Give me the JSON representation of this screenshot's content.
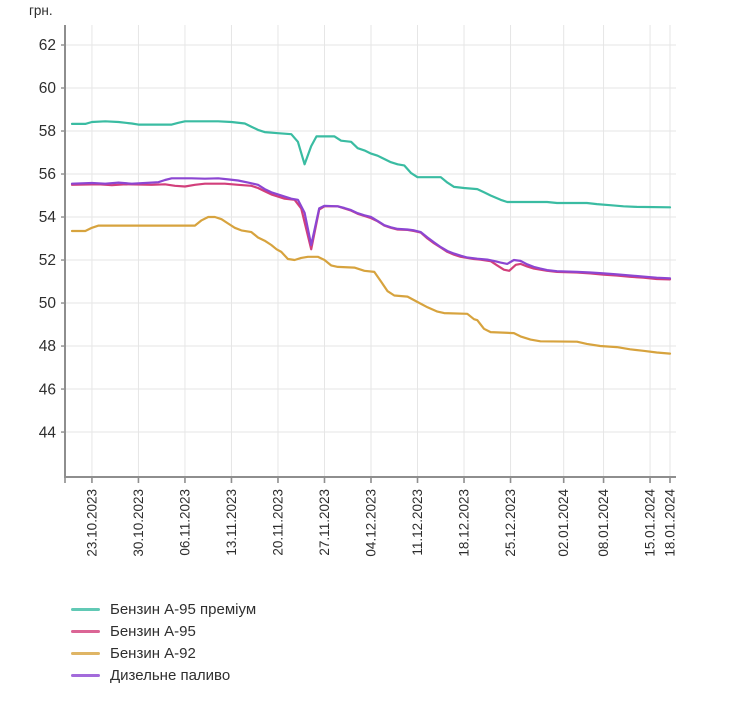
{
  "chart_data": {
    "type": "line",
    "ylabel": "грн.",
    "x_tick_labels": [
      "23.10.2023",
      "30.10.2023",
      "06.11.2023",
      "13.11.2023",
      "20.11.2023",
      "27.11.2023",
      "04.12.2023",
      "11.12.2023",
      "18.12.2023",
      "25.12.2023",
      "02.01.2024",
      "08.01.2024",
      "15.01.2024",
      "18.01.2024"
    ],
    "x_tick_days": [
      3,
      10,
      17,
      24,
      31,
      38,
      45,
      52,
      59,
      66,
      74,
      80,
      87,
      90
    ],
    "x_range_days": [
      0,
      90
    ],
    "x_start_date": "20.10.2023",
    "y_ticks": [
      62,
      60,
      58,
      56,
      54,
      52,
      50,
      48,
      46,
      44
    ],
    "ylim": [
      41.91,
      62.93
    ],
    "grid": true,
    "legend_position": "bottom-left",
    "colors": {
      "axis": "#8e8e8e",
      "grid": "#e6e6e6",
      "text": "#2e2e2e",
      "background": "#ffffff"
    },
    "series": [
      {
        "name": "Бензин А-95 преміум",
        "color": "#3abca2",
        "points": [
          [
            0,
            58.33
          ],
          [
            2,
            58.33
          ],
          [
            3,
            58.42
          ],
          [
            5,
            58.45
          ],
          [
            7,
            58.42
          ],
          [
            9,
            58.35
          ],
          [
            10,
            58.3
          ],
          [
            15,
            58.3
          ],
          [
            16,
            58.38
          ],
          [
            17,
            58.45
          ],
          [
            22,
            58.45
          ],
          [
            24,
            58.42
          ],
          [
            26,
            58.35
          ],
          [
            27,
            58.2
          ],
          [
            28,
            58.05
          ],
          [
            29,
            57.95
          ],
          [
            31,
            57.9
          ],
          [
            33,
            57.85
          ],
          [
            34,
            57.5
          ],
          [
            35,
            56.45
          ],
          [
            36,
            57.3
          ],
          [
            36.8,
            57.75
          ],
          [
            39.5,
            57.75
          ],
          [
            40.5,
            57.55
          ],
          [
            42,
            57.5
          ],
          [
            43,
            57.2
          ],
          [
            44,
            57.1
          ],
          [
            45,
            56.95
          ],
          [
            46,
            56.85
          ],
          [
            47,
            56.7
          ],
          [
            48,
            56.55
          ],
          [
            49,
            56.45
          ],
          [
            50,
            56.4
          ],
          [
            51,
            56.05
          ],
          [
            52,
            55.85
          ],
          [
            55.5,
            55.85
          ],
          [
            56.5,
            55.6
          ],
          [
            57.5,
            55.4
          ],
          [
            59,
            55.35
          ],
          [
            61,
            55.3
          ],
          [
            62,
            55.15
          ],
          [
            63,
            55.0
          ],
          [
            64.5,
            54.8
          ],
          [
            65.5,
            54.7
          ],
          [
            71.5,
            54.7
          ],
          [
            73,
            54.65
          ],
          [
            77.5,
            54.65
          ],
          [
            79,
            54.6
          ],
          [
            81,
            54.55
          ],
          [
            83,
            54.5
          ],
          [
            85,
            54.47
          ],
          [
            90,
            54.45
          ]
        ]
      },
      {
        "name": "Бензин А-95",
        "color": "#d23f7b",
        "points": [
          [
            0,
            55.5
          ],
          [
            4,
            55.52
          ],
          [
            6,
            55.48
          ],
          [
            8,
            55.52
          ],
          [
            12,
            55.5
          ],
          [
            14,
            55.52
          ],
          [
            15.5,
            55.45
          ],
          [
            17,
            55.42
          ],
          [
            18.5,
            55.5
          ],
          [
            20,
            55.55
          ],
          [
            23,
            55.55
          ],
          [
            25,
            55.5
          ],
          [
            27,
            55.45
          ],
          [
            28,
            55.35
          ],
          [
            29,
            55.2
          ],
          [
            30,
            55.05
          ],
          [
            31,
            54.95
          ],
          [
            32,
            54.85
          ],
          [
            33.5,
            54.8
          ],
          [
            34.5,
            54.4
          ],
          [
            36,
            52.5
          ],
          [
            37.2,
            54.35
          ],
          [
            38,
            54.5
          ],
          [
            40,
            54.5
          ],
          [
            41,
            54.4
          ],
          [
            42,
            54.3
          ],
          [
            43,
            54.15
          ],
          [
            44,
            54.05
          ],
          [
            45,
            53.95
          ],
          [
            46,
            53.8
          ],
          [
            47,
            53.6
          ],
          [
            48,
            53.5
          ],
          [
            49,
            53.42
          ],
          [
            50.5,
            53.4
          ],
          [
            51.5,
            53.35
          ],
          [
            52.5,
            53.28
          ],
          [
            53.5,
            53.0
          ],
          [
            54.5,
            52.78
          ],
          [
            55.5,
            52.58
          ],
          [
            56.5,
            52.38
          ],
          [
            57.5,
            52.25
          ],
          [
            58.5,
            52.15
          ],
          [
            59.5,
            52.1
          ],
          [
            60.5,
            52.05
          ],
          [
            61.5,
            52.02
          ],
          [
            63,
            51.95
          ],
          [
            64,
            51.75
          ],
          [
            65,
            51.55
          ],
          [
            65.8,
            51.5
          ],
          [
            66.8,
            51.78
          ],
          [
            67.5,
            51.82
          ],
          [
            68.5,
            51.7
          ],
          [
            69.5,
            51.6
          ],
          [
            70.5,
            51.55
          ],
          [
            71.5,
            51.5
          ],
          [
            73,
            51.45
          ],
          [
            76,
            51.42
          ],
          [
            78,
            51.38
          ],
          [
            80,
            51.32
          ],
          [
            82,
            51.28
          ],
          [
            84,
            51.22
          ],
          [
            86,
            51.18
          ],
          [
            88,
            51.12
          ],
          [
            90,
            51.1
          ]
        ]
      },
      {
        "name": "Бензин А-92",
        "color": "#d7a33e",
        "points": [
          [
            0,
            53.35
          ],
          [
            2,
            53.35
          ],
          [
            3,
            53.5
          ],
          [
            4,
            53.6
          ],
          [
            18.5,
            53.6
          ],
          [
            19.5,
            53.85
          ],
          [
            20.5,
            54.0
          ],
          [
            21.5,
            54.0
          ],
          [
            22.5,
            53.9
          ],
          [
            23.5,
            53.7
          ],
          [
            24.5,
            53.5
          ],
          [
            25.5,
            53.38
          ],
          [
            27,
            53.3
          ],
          [
            28,
            53.05
          ],
          [
            29,
            52.9
          ],
          [
            30,
            52.7
          ],
          [
            30.8,
            52.5
          ],
          [
            31.5,
            52.38
          ],
          [
            32.5,
            52.05
          ],
          [
            33.5,
            52.0
          ],
          [
            34.5,
            52.1
          ],
          [
            35.5,
            52.15
          ],
          [
            37,
            52.15
          ],
          [
            38,
            52.0
          ],
          [
            39,
            51.75
          ],
          [
            40,
            51.68
          ],
          [
            42.5,
            51.65
          ],
          [
            44,
            51.5
          ],
          [
            45.5,
            51.45
          ],
          [
            46.5,
            51.0
          ],
          [
            47.5,
            50.55
          ],
          [
            48.5,
            50.35
          ],
          [
            50.5,
            50.3
          ],
          [
            52,
            50.05
          ],
          [
            53.5,
            49.8
          ],
          [
            55,
            49.6
          ],
          [
            56,
            49.53
          ],
          [
            59.5,
            49.5
          ],
          [
            60.5,
            49.25
          ],
          [
            61,
            49.2
          ],
          [
            62,
            48.8
          ],
          [
            63,
            48.65
          ],
          [
            66.5,
            48.6
          ],
          [
            67.5,
            48.45
          ],
          [
            69,
            48.3
          ],
          [
            70.5,
            48.22
          ],
          [
            76,
            48.2
          ],
          [
            77.5,
            48.1
          ],
          [
            79.5,
            48.0
          ],
          [
            82,
            47.95
          ],
          [
            84,
            47.85
          ],
          [
            86,
            47.78
          ],
          [
            88,
            47.7
          ],
          [
            90,
            47.65
          ]
        ]
      },
      {
        "name": "Дизельне паливо",
        "color": "#8c46d2",
        "points": [
          [
            0,
            55.55
          ],
          [
            3,
            55.58
          ],
          [
            5,
            55.55
          ],
          [
            7,
            55.6
          ],
          [
            9,
            55.55
          ],
          [
            11,
            55.58
          ],
          [
            13,
            55.62
          ],
          [
            14,
            55.72
          ],
          [
            15,
            55.8
          ],
          [
            18,
            55.8
          ],
          [
            20,
            55.78
          ],
          [
            22,
            55.8
          ],
          [
            23.5,
            55.75
          ],
          [
            25,
            55.7
          ],
          [
            26.5,
            55.6
          ],
          [
            28,
            55.5
          ],
          [
            29,
            55.3
          ],
          [
            30,
            55.15
          ],
          [
            31,
            55.05
          ],
          [
            32,
            54.95
          ],
          [
            33,
            54.85
          ],
          [
            34,
            54.8
          ],
          [
            35,
            54.2
          ],
          [
            36,
            52.7
          ],
          [
            37.2,
            54.4
          ],
          [
            38,
            54.52
          ],
          [
            40,
            54.5
          ],
          [
            41,
            54.42
          ],
          [
            42,
            54.32
          ],
          [
            43,
            54.18
          ],
          [
            44,
            54.08
          ],
          [
            45,
            54.0
          ],
          [
            46,
            53.82
          ],
          [
            47,
            53.62
          ],
          [
            48,
            53.52
          ],
          [
            49,
            53.45
          ],
          [
            50.5,
            53.42
          ],
          [
            51.5,
            53.38
          ],
          [
            52.5,
            53.3
          ],
          [
            53.5,
            53.05
          ],
          [
            54.5,
            52.82
          ],
          [
            55.5,
            52.6
          ],
          [
            56.5,
            52.42
          ],
          [
            57.5,
            52.3
          ],
          [
            58.5,
            52.2
          ],
          [
            59.5,
            52.12
          ],
          [
            61,
            52.06
          ],
          [
            62.5,
            52.02
          ],
          [
            63.5,
            51.96
          ],
          [
            64.5,
            51.88
          ],
          [
            65.5,
            51.82
          ],
          [
            66.5,
            52.0
          ],
          [
            67.5,
            51.96
          ],
          [
            68.5,
            51.8
          ],
          [
            69.5,
            51.68
          ],
          [
            70.5,
            51.6
          ],
          [
            71.5,
            51.53
          ],
          [
            73,
            51.48
          ],
          [
            76,
            51.45
          ],
          [
            78,
            51.42
          ],
          [
            80,
            51.38
          ],
          [
            82,
            51.33
          ],
          [
            84,
            51.28
          ],
          [
            86,
            51.23
          ],
          [
            88,
            51.18
          ],
          [
            90,
            51.15
          ]
        ]
      }
    ]
  }
}
